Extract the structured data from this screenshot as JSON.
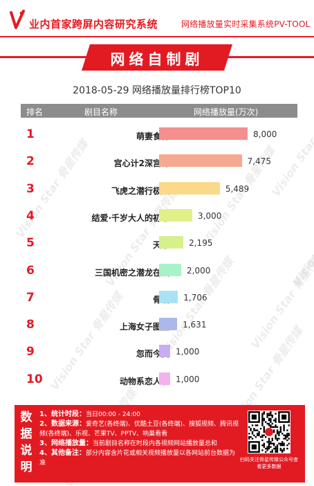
{
  "header": {
    "title": "业内首家跨屏内容研究系统",
    "subtitle": "网络播放量实时采集系统PV-TOOL"
  },
  "banner": {
    "label": "网络自制剧"
  },
  "watermark": "Vision Star 骨星传媒",
  "colors": {
    "brand": "#e21b23",
    "header_bg": "#8c8c8c"
  },
  "chart_data": {
    "type": "bar",
    "title": "2018-05-29  网络播放量排行榜TOP10",
    "columns": [
      "排名",
      "剧目名称",
      "网络播放量(万次)"
    ],
    "ranks": [
      "1",
      "2",
      "3",
      "4",
      "5",
      "6",
      "7",
      "8",
      "9",
      "10"
    ],
    "categories": [
      "萌妻食神",
      "宫心计2深宫计",
      "飞虎之潜行极战",
      "结爱·千岁大人的初恋",
      "天意",
      "三国机密之潜龙在渊",
      "骨语",
      "上海女子图鉴",
      "忽而今夏",
      "动物系恋人啊"
    ],
    "values": [
      8000,
      7475,
      5489,
      3000,
      2195,
      2000,
      1706,
      1631,
      1000,
      1000
    ],
    "value_labels": [
      "8,000",
      "7,475",
      "5,489",
      "3,000",
      "2,195",
      "2,000",
      "1,706",
      "1,631",
      "1,000",
      "1,000"
    ],
    "bar_colors": [
      "#f58f8f",
      "#f6a98f",
      "#fbd98b",
      "#e2f08a",
      "#d6f08c",
      "#a7f2c7",
      "#a8e2f4",
      "#aab8ea",
      "#c8aef0",
      "#f4b2ec"
    ],
    "xlim": [
      0,
      8000
    ]
  },
  "info": {
    "side_label": "数据说明",
    "lines": [
      {
        "label": "1、统计时段：",
        "text": "当日00:00 - 24:00"
      },
      {
        "label": "2、数据来源：",
        "text": "爱奇艺(各终端)、优酷土豆(各终端)、搜狐视频、腾讯视频(各终端)、乐视、芒果TV、PPTV、响巢看看"
      },
      {
        "label": "3、网络播放量：",
        "text": "当前剧目名称在时段内各视频网站播放量总和"
      },
      {
        "label": "4、其他备注：",
        "text": "部分内容含片花或相关视频播放量以各网站前台数据为准"
      }
    ],
    "qr_caption": "扫码关注骨星传媒公众号查看更多数据"
  }
}
